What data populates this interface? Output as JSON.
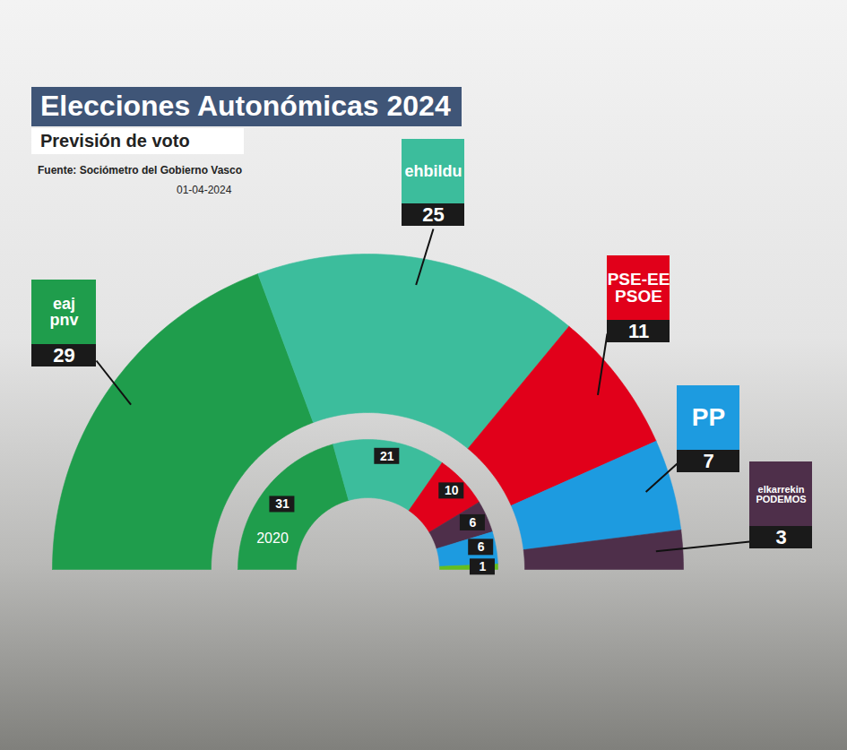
{
  "chart_data": {
    "type": "parliament",
    "title": "Elecciones Autonómicas 2024",
    "subtitle": "Previsión de voto",
    "source": "Fuente: Sociómetro del Gobierno Vasco",
    "date": "01-04-2024",
    "data_labels": true,
    "rings": [
      {
        "categories": [
          "eaj pnv",
          "ehbildu",
          "PSE-EE PSOE",
          "PP",
          "elkarrekin PODEMOS"
        ],
        "values": [
          29,
          25,
          11,
          7,
          3
        ],
        "colors": [
          "#1f9d4c",
          "#3cbd9c",
          "#e1001a",
          "#1d9be0",
          "#4e2f4a"
        ]
      },
      {
        "name": "2020",
        "categories": [
          null,
          null,
          null,
          null,
          null,
          null
        ],
        "values": [
          31,
          21,
          10,
          6,
          6,
          1
        ],
        "colors": [
          "#1f9d4c",
          "#3cbd9c",
          "#e1001a",
          "#4e2f4a",
          "#1d9be0",
          "#63be21"
        ]
      }
    ]
  }
}
